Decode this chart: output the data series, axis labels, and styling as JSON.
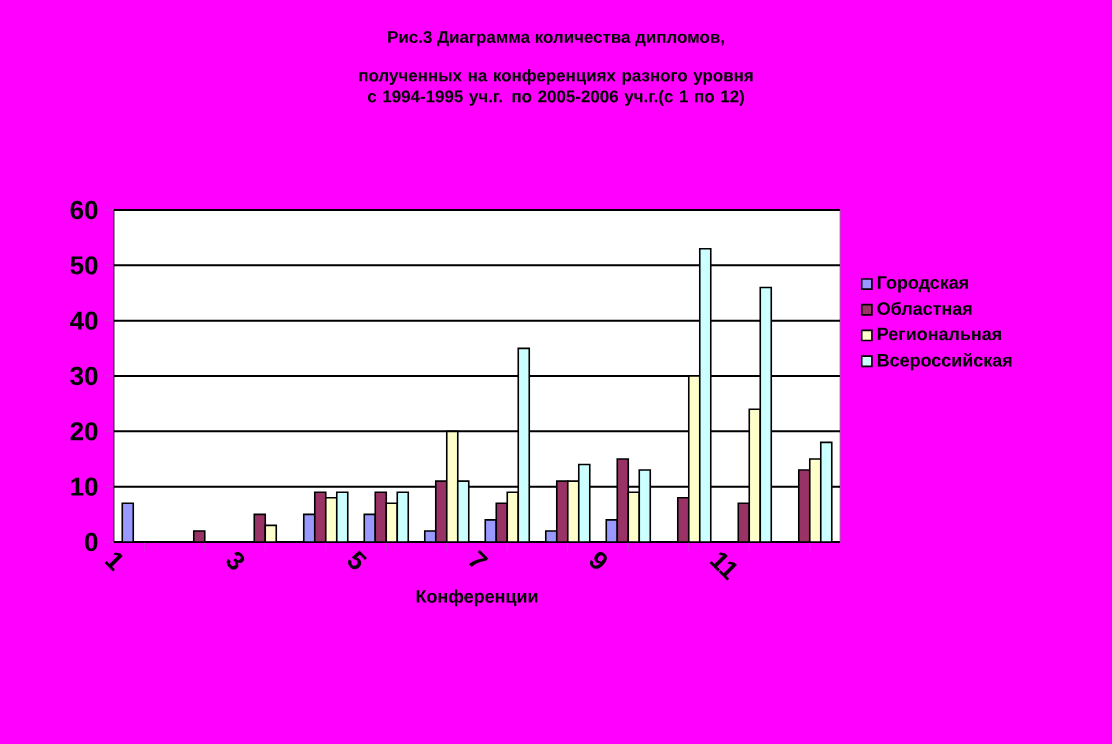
{
  "chart_data": {
    "type": "bar",
    "title": "Рис.3 Диаграмма количества дипломов,",
    "subtitle": "полученных на конференциях разного уровня с 1994-1995 уч.г. по 2005-2006 уч.г.(с 1 по 12)",
    "xlabel": "Конференции",
    "categories": [
      "1",
      null,
      "3",
      null,
      "5",
      null,
      "7",
      null,
      "9",
      null,
      "11",
      null
    ],
    "series": [
      {
        "name": "Городская",
        "color": "#9999ff",
        "values": [
          7,
          0,
          0,
          5,
          5,
          2,
          4,
          2,
          4,
          0,
          0,
          0
        ]
      },
      {
        "name": "Областная",
        "color": "#993366",
        "values": [
          0,
          2,
          5,
          9,
          9,
          11,
          7,
          11,
          15,
          8,
          7,
          13
        ]
      },
      {
        "name": "Региональная",
        "color": "#ffffcc",
        "values": [
          0,
          0,
          3,
          8,
          7,
          20,
          9,
          11,
          9,
          30,
          24,
          15
        ]
      },
      {
        "name": "Всероссийская",
        "color": "#ccffff",
        "values": [
          0,
          0,
          0,
          9,
          9,
          11,
          35,
          14,
          13,
          53,
          46,
          18
        ]
      }
    ],
    "ylim": [
      0,
      60
    ],
    "yticks": [
      0,
      10,
      20,
      30,
      40,
      50,
      60
    ],
    "grid": "y",
    "legend": "right"
  }
}
